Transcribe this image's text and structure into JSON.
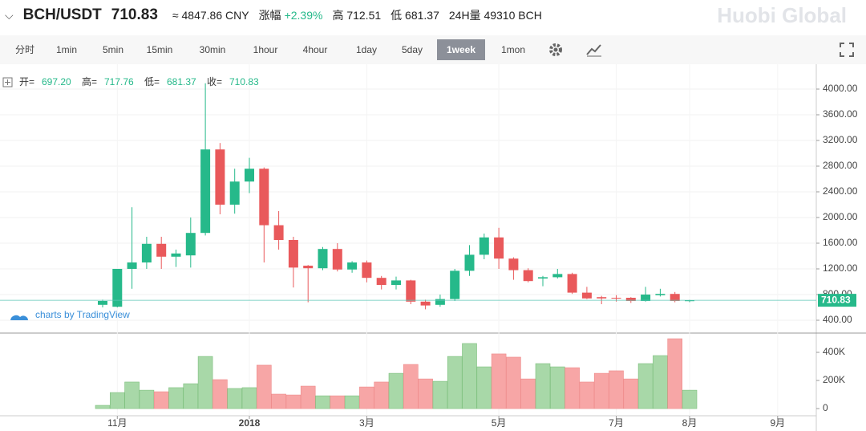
{
  "header": {
    "pair": "BCH/USDT",
    "price": "710.83",
    "cny": "≈ 4847.86 CNY",
    "change_label": "涨幅",
    "change": "+2.39%",
    "high": "高 712.51",
    "low": "低 681.37",
    "volume": "24H量 49310 BCH",
    "brand": "Huobi Global"
  },
  "toolbar": {
    "intervals": [
      "分时",
      "1min",
      "5min",
      "15min",
      "30min",
      "1hour",
      "4hour",
      "1day",
      "5day",
      "1week",
      "1mon"
    ],
    "active": 9
  },
  "legend": [
    {
      "label": "开=",
      "value": "697.20"
    },
    {
      "label": "高=",
      "value": "717.76"
    },
    {
      "label": "低=",
      "value": "681.37"
    },
    {
      "label": "收=",
      "value": "710.83"
    }
  ],
  "watermark": "charts by TradingView",
  "chart_data": {
    "type": "candlestick",
    "up_color": "#26b98a",
    "down_color": "#e9595b",
    "volume_up_color": "#a8d8a8",
    "volume_down_color": "#f7a6a6",
    "open": [
      640,
      610,
      1200,
      1300,
      1590,
      1390,
      1410,
      1760,
      3060,
      2200,
      2560,
      2760,
      1880,
      1650,
      1250,
      1210,
      1510,
      1190,
      1300,
      1060,
      950,
      1020,
      690,
      640,
      730,
      1170,
      1420,
      1690,
      1360,
      1180,
      1050,
      1070,
      1120,
      830,
      760,
      750,
      750,
      700,
      790,
      810,
      697.2
    ],
    "high": [
      720,
      1200,
      2160,
      1700,
      1700,
      1500,
      2000,
      4090,
      3160,
      2760,
      2930,
      2780,
      2100,
      1700,
      1260,
      1540,
      1600,
      1320,
      1330,
      1090,
      1080,
      1030,
      720,
      800,
      1200,
      1570,
      1750,
      1840,
      1380,
      1210,
      1090,
      1200,
      1140,
      920,
      780,
      790,
      760,
      920,
      890,
      840,
      717.76
    ],
    "low": [
      600,
      600,
      890,
      1200,
      1200,
      1230,
      1220,
      1720,
      2050,
      2060,
      2380,
      1300,
      1500,
      910,
      680,
      1180,
      1160,
      1140,
      990,
      880,
      880,
      650,
      570,
      610,
      700,
      1090,
      1350,
      1200,
      1030,
      990,
      930,
      1050,
      810,
      730,
      650,
      690,
      670,
      690,
      770,
      680,
      681.37
    ],
    "close": [
      700,
      1200,
      1300,
      1590,
      1390,
      1440,
      1760,
      3060,
      2200,
      2560,
      2760,
      1880,
      1650,
      1220,
      1210,
      1510,
      1190,
      1300,
      1060,
      950,
      1020,
      690,
      630,
      730,
      1170,
      1420,
      1690,
      1360,
      1180,
      1010,
      1070,
      1120,
      830,
      740,
      740,
      740,
      700,
      800,
      810,
      700,
      710.83
    ],
    "volume": [
      23000,
      114000,
      189000,
      131000,
      120000,
      149000,
      177000,
      371000,
      206000,
      143000,
      149000,
      309000,
      103000,
      97000,
      160000,
      91000,
      91000,
      91000,
      154000,
      189000,
      251000,
      314000,
      211000,
      194000,
      371000,
      463000,
      297000,
      389000,
      366000,
      211000,
      320000,
      297000,
      291000,
      189000,
      251000,
      269000,
      211000,
      320000,
      377000,
      497000,
      131000
    ],
    "ylim": [
      225,
      4325
    ],
    "yticks": [
      {
        "value": 400,
        "label": "400.00"
      },
      {
        "value": 800,
        "label": "800.00"
      },
      {
        "value": 1200,
        "label": "1200.00"
      },
      {
        "value": 1600,
        "label": "1600.00"
      },
      {
        "value": 2000,
        "label": "2000.00"
      },
      {
        "value": 2400,
        "label": "2400.00"
      },
      {
        "value": 2800,
        "label": "2800.00"
      },
      {
        "value": 3200,
        "label": "3200.00"
      },
      {
        "value": 3600,
        "label": "3600.00"
      },
      {
        "value": 4000,
        "label": "4000.00"
      }
    ],
    "vlim": [
      -51000,
      520000
    ],
    "vticks": [
      0,
      {
        "value": 200000,
        "label": "200K"
      },
      {
        "value": 400000,
        "label": "400K"
      }
    ],
    "xticks": [
      {
        "value": 1,
        "label": "11月"
      },
      {
        "value": 10,
        "label": "2018"
      },
      {
        "value": 18,
        "label": "3月"
      },
      {
        "value": 27,
        "label": "5月"
      },
      {
        "value": 35,
        "label": "7月"
      },
      {
        "value": 40,
        "label": "8月"
      },
      {
        "value": 46,
        "label": "9月"
      }
    ]
  }
}
